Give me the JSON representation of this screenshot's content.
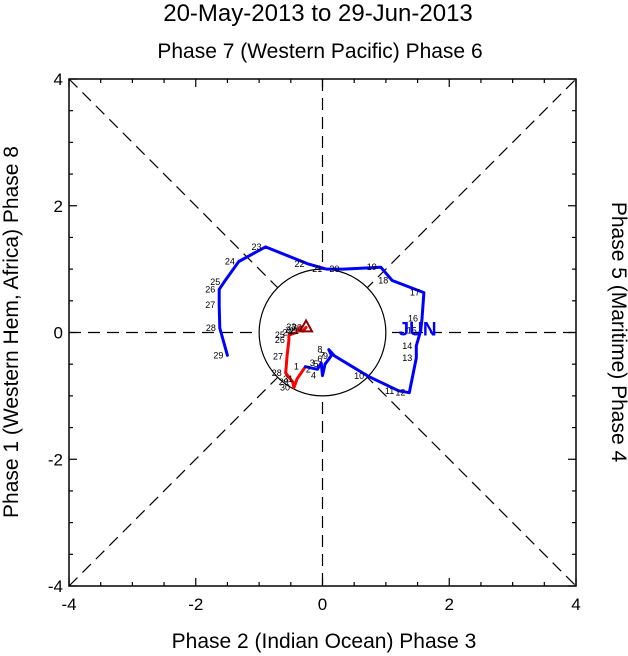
{
  "chart_data": {
    "type": "line",
    "title": "20-May-2013 to 29-Jun-2013",
    "subtitle": "Phase 7 (Western Pacific) Phase 6",
    "xlabel": "Phase 2 (Indian Ocean) Phase 3",
    "ylabel_left": "Phase 1 (Western Hem, Africa) Phase 8",
    "ylabel_right": "Phase 5 (Maritime) Phase 4",
    "xlim": [
      -4,
      4
    ],
    "ylim": [
      -4,
      4
    ],
    "xticks": [
      "-4",
      "-2",
      "0",
      "2",
      "4"
    ],
    "yticks": [
      "-4",
      "-2",
      "0",
      "2",
      "4"
    ],
    "unit_circle_radius": 1,
    "colors": {
      "may": "#ff0000",
      "jun": "#0000ff",
      "axis": "#000000"
    },
    "month_labels": [
      {
        "text": "JUN",
        "x": 1.5,
        "y": -0.05,
        "color": "#0000ff"
      }
    ],
    "series": [
      {
        "name": "May",
        "color": "#ff0000",
        "points": [
          {
            "day": "20",
            "x": -0.26,
            "y": 0.08
          },
          {
            "day": "21",
            "x": -0.31,
            "y": 0.02
          },
          {
            "day": "22",
            "x": -0.36,
            "y": 0.04
          },
          {
            "day": "23",
            "x": -0.35,
            "y": 0.09
          },
          {
            "day": "24",
            "x": -0.41,
            "y": 0.0
          },
          {
            "day": "25",
            "x": -0.53,
            "y": -0.04
          },
          {
            "day": "26",
            "x": -0.53,
            "y": -0.12
          },
          {
            "day": "27",
            "x": -0.56,
            "y": -0.38
          },
          {
            "day": "28",
            "x": -0.58,
            "y": -0.64
          },
          {
            "day": "29",
            "x": -0.47,
            "y": -0.78
          },
          {
            "day": "30",
            "x": -0.45,
            "y": -0.87
          },
          {
            "day": "31",
            "x": -0.4,
            "y": -0.73
          }
        ]
      },
      {
        "name": "June",
        "color": "#0000ff",
        "points": [
          {
            "day": "1",
            "x": -0.27,
            "y": -0.54
          },
          {
            "day": "2",
            "x": -0.08,
            "y": -0.58
          },
          {
            "day": "3",
            "x": -0.02,
            "y": -0.48
          },
          {
            "day": "4",
            "x": -0.0,
            "y": -0.68
          },
          {
            "day": "5",
            "x": 0.04,
            "y": -0.5
          },
          {
            "day": "6",
            "x": 0.1,
            "y": -0.42
          },
          {
            "day": "7",
            "x": 0.14,
            "y": -0.36
          },
          {
            "day": "8",
            "x": 0.1,
            "y": -0.27
          },
          {
            "day": "9",
            "x": 0.19,
            "y": -0.37
          },
          {
            "day": "10",
            "x": 0.72,
            "y": -0.69
          },
          {
            "day": "11",
            "x": 1.2,
            "y": -0.92
          },
          {
            "day": "12",
            "x": 1.37,
            "y": -0.95
          },
          {
            "day": "13",
            "x": 1.48,
            "y": -0.4
          },
          {
            "day": "14",
            "x": 1.48,
            "y": -0.21
          },
          {
            "day": "15",
            "x": 1.55,
            "y": 0.03
          },
          {
            "day": "16",
            "x": 1.57,
            "y": 0.22
          },
          {
            "day": "17",
            "x": 1.6,
            "y": 0.63
          },
          {
            "day": "18",
            "x": 1.1,
            "y": 0.82
          },
          {
            "day": "19",
            "x": 0.92,
            "y": 1.03
          },
          {
            "day": "20",
            "x": 0.33,
            "y": 1.0
          },
          {
            "day": "21",
            "x": 0.06,
            "y": 1.0
          },
          {
            "day": "22",
            "x": -0.22,
            "y": 1.08
          },
          {
            "day": "23",
            "x": -0.9,
            "y": 1.35
          },
          {
            "day": "24",
            "x": -1.32,
            "y": 1.12
          },
          {
            "day": "25",
            "x": -1.55,
            "y": 0.8
          },
          {
            "day": "26",
            "x": -1.63,
            "y": 0.68
          },
          {
            "day": "27",
            "x": -1.63,
            "y": 0.43
          },
          {
            "day": "28",
            "x": -1.62,
            "y": 0.07
          },
          {
            "day": "29",
            "x": -1.5,
            "y": -0.36
          }
        ]
      }
    ]
  }
}
